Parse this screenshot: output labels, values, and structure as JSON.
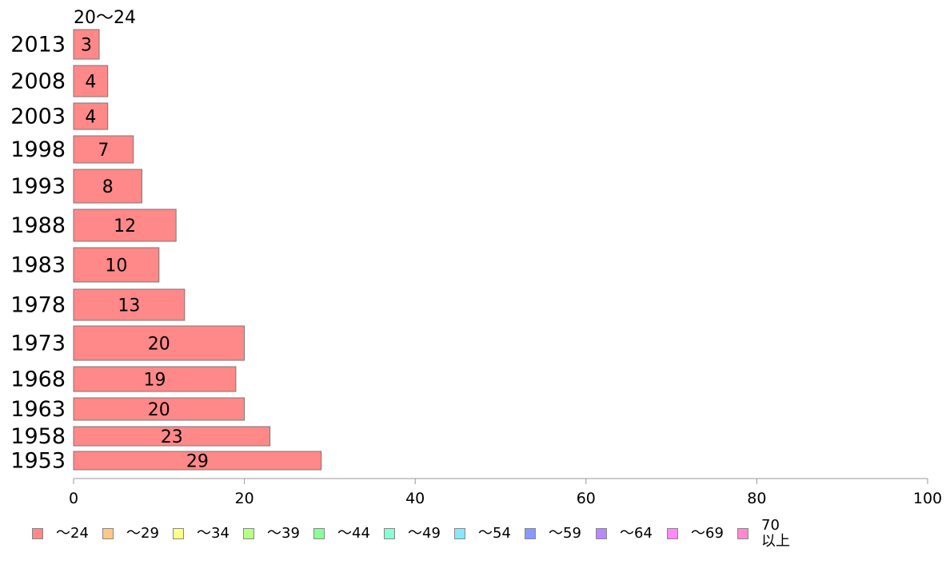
{
  "chart_data": {
    "type": "bar",
    "orientation": "horizontal",
    "stacked": true,
    "group_label": "20〜24",
    "categories": [
      "2013",
      "2008",
      "2003",
      "1998",
      "1993",
      "1988",
      "1983",
      "1978",
      "1973",
      "1968",
      "1963",
      "1958",
      "1953"
    ],
    "series": [
      {
        "name": "〜24",
        "color": "#ff8888",
        "values": [
          3,
          4,
          4,
          7,
          8,
          12,
          10,
          13,
          20,
          19,
          20,
          23,
          29
        ]
      }
    ],
    "xlim": [
      0,
      100
    ],
    "xticks": [
      0,
      20,
      40,
      60,
      80,
      100
    ],
    "grid": false,
    "legend_position": "bottom",
    "legend": [
      {
        "label": "〜24",
        "color": "#ff8888"
      },
      {
        "label": "〜29",
        "color": "#ffc888"
      },
      {
        "label": "〜34",
        "color": "#ffff88"
      },
      {
        "label": "〜39",
        "color": "#b8ff88"
      },
      {
        "label": "〜44",
        "color": "#88ff98"
      },
      {
        "label": "〜49",
        "color": "#88ffd8"
      },
      {
        "label": "〜54",
        "color": "#88e8ff"
      },
      {
        "label": "〜59",
        "color": "#8898ff"
      },
      {
        "label": "〜64",
        "color": "#b888ff"
      },
      {
        "label": "〜69",
        "color": "#ff88ff"
      },
      {
        "label": "70\n以上",
        "color": "#ff88d0"
      }
    ]
  }
}
